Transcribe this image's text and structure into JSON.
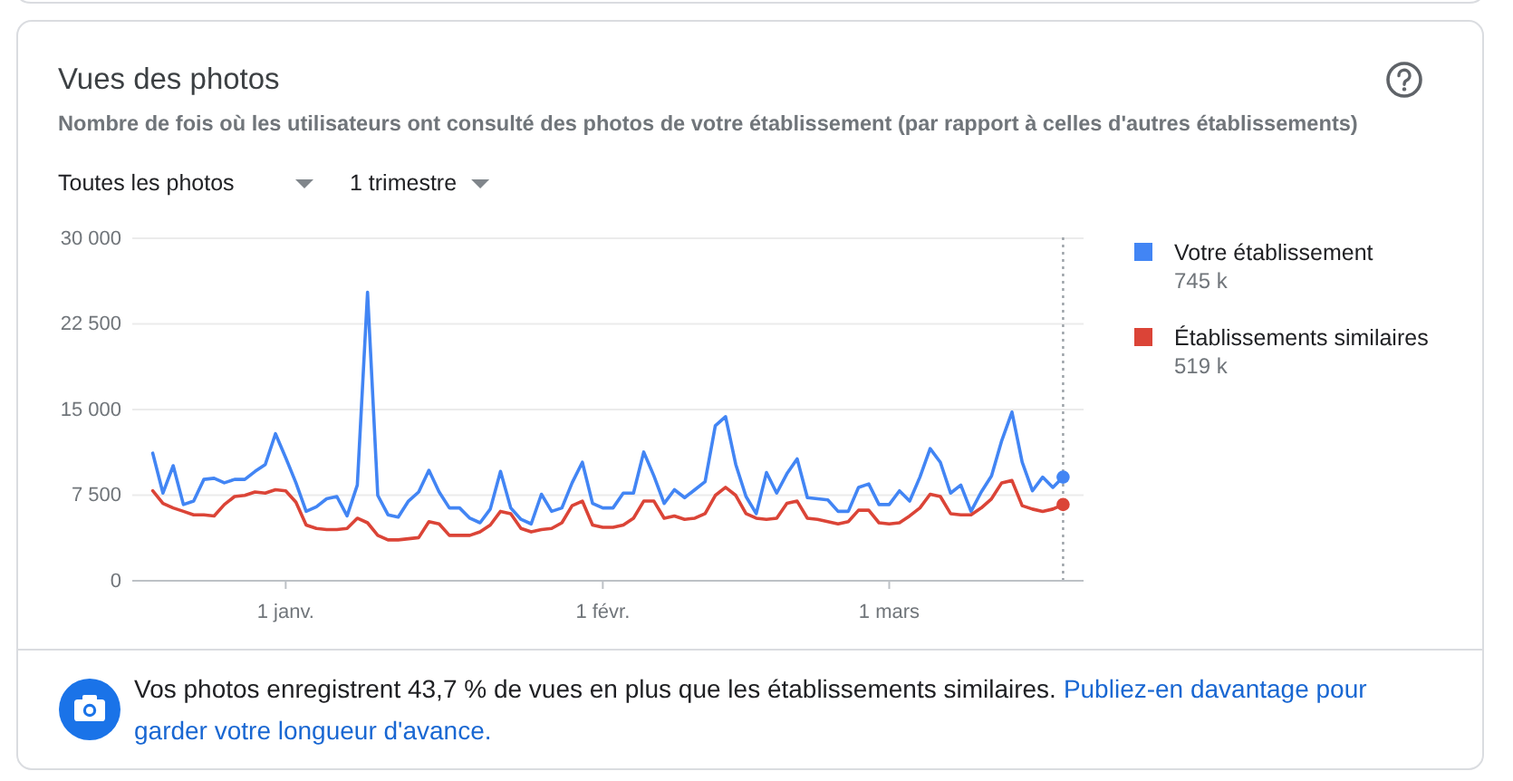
{
  "chart_data": {
    "type": "line",
    "title": "Vues des photos",
    "subtitle": "Nombre de fois où les utilisateurs ont consulté des photos de votre établissement (par rapport à celles d'autres établissements)",
    "categories": [
      null,
      null,
      null,
      null,
      null,
      null,
      null,
      null,
      null,
      null,
      null,
      null,
      null,
      "1 janv.",
      null,
      null,
      null,
      null,
      null,
      null,
      null,
      null,
      null,
      null,
      null,
      null,
      null,
      null,
      null,
      null,
      null,
      null,
      null,
      null,
      null,
      null,
      null,
      null,
      null,
      null,
      null,
      null,
      null,
      null,
      "1 févr.",
      null,
      null,
      null,
      null,
      null,
      null,
      null,
      null,
      null,
      null,
      null,
      null,
      null,
      null,
      null,
      null,
      null,
      null,
      null,
      null,
      null,
      null,
      null,
      null,
      null,
      null,
      null,
      "1 mars",
      null,
      null,
      null,
      null,
      null,
      null,
      null,
      null,
      null,
      null,
      null,
      null,
      null,
      null,
      null,
      null,
      null
    ],
    "series": [
      {
        "name": "Votre établissement",
        "color": "#4285f4",
        "values": [
          11100,
          7600,
          10000,
          6600,
          6900,
          8800,
          8900,
          8500,
          8800,
          8800,
          9500,
          10100,
          12800,
          10700,
          8500,
          6000,
          6400,
          7100,
          7300,
          5600,
          8300,
          25200,
          7400,
          5700,
          5500,
          6900,
          7700,
          9600,
          7700,
          6300,
          6300,
          5400,
          5000,
          6200,
          9500,
          6300,
          5300,
          4900,
          7500,
          6000,
          6300,
          8500,
          10300,
          6700,
          6300,
          6300,
          7600,
          7600,
          11200,
          9100,
          6700,
          7900,
          7200,
          7900,
          8600,
          13500,
          14300,
          10100,
          7300,
          5800,
          9400,
          7600,
          9300,
          10600,
          7200,
          7100,
          7000,
          6000,
          6000,
          8100,
          8400,
          6600,
          6600,
          7800,
          6900,
          9000,
          11500,
          10300,
          7600,
          8300,
          6000,
          7700,
          9100,
          12200,
          14700,
          10300,
          7800,
          9000,
          8100,
          9000
        ]
      },
      {
        "name": "Établissements similaires",
        "color": "#db4437",
        "values": [
          7800,
          6700,
          6300,
          6000,
          5700,
          5700,
          5600,
          6600,
          7300,
          7400,
          7700,
          7600,
          7900,
          7800,
          6800,
          4800,
          4500,
          4400,
          4400,
          4500,
          5400,
          5000,
          3900,
          3500,
          3500,
          3600,
          3700,
          5100,
          4900,
          3900,
          3900,
          3900,
          4200,
          4800,
          6000,
          5800,
          4500,
          4200,
          4400,
          4500,
          5000,
          6500,
          6900,
          4800,
          4600,
          4600,
          4800,
          5400,
          6900,
          6900,
          5400,
          5600,
          5300,
          5400,
          5800,
          7400,
          8100,
          7400,
          5800,
          5400,
          5300,
          5400,
          6700,
          6900,
          5400,
          5300,
          5100,
          4900,
          5100,
          6100,
          6100,
          5000,
          4900,
          5000,
          5600,
          6300,
          7500,
          7300,
          5800,
          5700,
          5700,
          6300,
          7100,
          8500,
          8700,
          6500,
          6200,
          6000,
          6200,
          6600
        ]
      },
      {
        "type": "scatter",
        "color": "#4285f4",
        "marker": "circle",
        "values": [
          null,
          null,
          null,
          null,
          null,
          null,
          null,
          null,
          null,
          null,
          null,
          null,
          null,
          null,
          null,
          null,
          null,
          null,
          null,
          null,
          null,
          null,
          null,
          null,
          null,
          null,
          null,
          null,
          null,
          null,
          null,
          null,
          null,
          null,
          null,
          null,
          null,
          null,
          null,
          null,
          null,
          null,
          null,
          null,
          null,
          null,
          null,
          null,
          null,
          null,
          null,
          null,
          null,
          null,
          null,
          null,
          null,
          null,
          null,
          null,
          null,
          null,
          null,
          null,
          null,
          null,
          null,
          null,
          null,
          null,
          null,
          null,
          null,
          null,
          null,
          null,
          null,
          null,
          null,
          null,
          null,
          null,
          null,
          null,
          null,
          null,
          null,
          null,
          null,
          9000
        ]
      },
      {
        "type": "scatter",
        "color": "#db4437",
        "marker": "circle",
        "values": [
          null,
          null,
          null,
          null,
          null,
          null,
          null,
          null,
          null,
          null,
          null,
          null,
          null,
          null,
          null,
          null,
          null,
          null,
          null,
          null,
          null,
          null,
          null,
          null,
          null,
          null,
          null,
          null,
          null,
          null,
          null,
          null,
          null,
          null,
          null,
          null,
          null,
          null,
          null,
          null,
          null,
          null,
          null,
          null,
          null,
          null,
          null,
          null,
          null,
          null,
          null,
          null,
          null,
          null,
          null,
          null,
          null,
          null,
          null,
          null,
          null,
          null,
          null,
          null,
          null,
          null,
          null,
          null,
          null,
          null,
          null,
          null,
          null,
          null,
          null,
          null,
          null,
          null,
          null,
          null,
          null,
          null,
          null,
          null,
          null,
          null,
          null,
          null,
          null,
          6600
        ]
      }
    ],
    "ylim": [
      0,
      30000
    ],
    "yticks": [
      {
        "value": 0,
        "label": "0"
      },
      {
        "value": 7500,
        "label": "7 500"
      },
      {
        "value": 15000,
        "label": "15 000"
      },
      {
        "value": 22500,
        "label": "22 500"
      },
      {
        "value": 30000,
        "label": "30 000"
      }
    ],
    "grid": "y",
    "legend": "right",
    "annotations": [
      "Toutes les photos",
      "1 trimestre",
      "745 k",
      "519 k",
      "Vos photos enregistrent 43,7 % de vues en plus que les établissements similaires.",
      "Publiez-en davantage pour garder votre longueur d'avance."
    ]
  }
}
